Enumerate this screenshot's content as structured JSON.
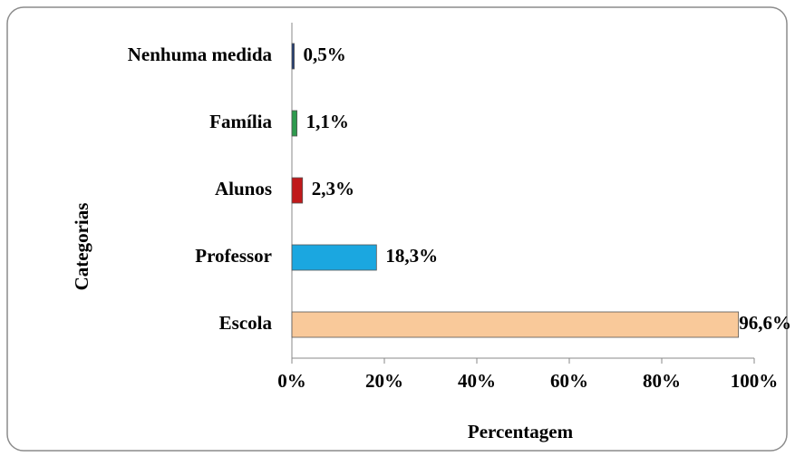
{
  "chart_data": {
    "type": "bar",
    "orientation": "horizontal",
    "x_label": "Percentagem",
    "y_label": "Categorias",
    "categories": [
      "Nenhuma medida",
      "Família",
      "Alunos",
      "Professor",
      "Escola"
    ],
    "values": [
      0.5,
      1.1,
      2.3,
      18.3,
      96.6
    ],
    "value_labels": [
      "0,5%",
      "1,1%",
      "2,3%",
      "18,3%",
      "96,6%"
    ],
    "colors": [
      "#1f3b73",
      "#2e9a4e",
      "#c0191b",
      "#1ba7e0",
      "#f9c99a"
    ],
    "xlim": [
      0,
      100
    ],
    "xticks": [
      {
        "value": 0,
        "label": "0%"
      },
      {
        "value": 20,
        "label": "20%"
      },
      {
        "value": 40,
        "label": "40%"
      },
      {
        "value": 60,
        "label": "60%"
      },
      {
        "value": 80,
        "label": "80%"
      },
      {
        "value": 100,
        "label": "100%"
      }
    ],
    "grid": false
  }
}
